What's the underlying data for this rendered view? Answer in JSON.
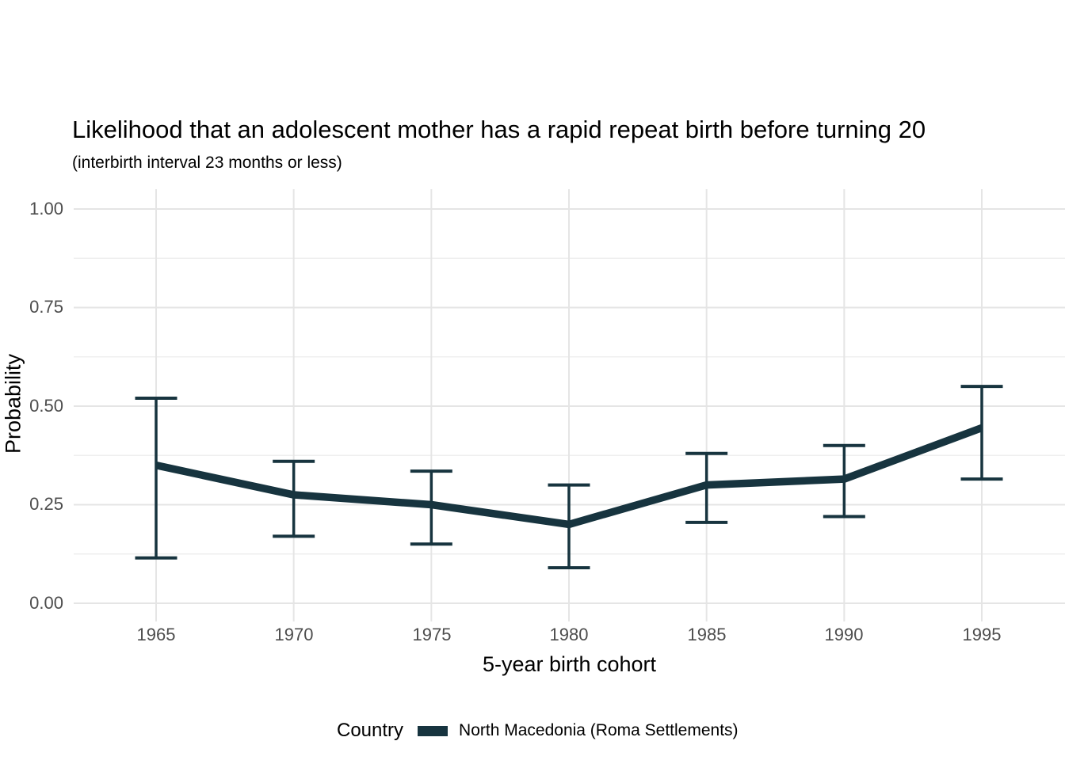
{
  "chart_data": {
    "type": "line",
    "title": "Likelihood that an adolescent mother has a rapid repeat birth before turning 20",
    "subtitle": "(interbirth interval 23 months or less)",
    "xlabel": "5-year birth cohort",
    "ylabel": "Probability",
    "x": [
      1965,
      1970,
      1975,
      1980,
      1985,
      1990,
      1995
    ],
    "x_tick_labels": [
      "1965",
      "1970",
      "1975",
      "1980",
      "1985",
      "1990",
      "1995"
    ],
    "y_ticks": [
      0.0,
      0.25,
      0.5,
      0.75,
      1.0
    ],
    "y_tick_labels": [
      "0.00",
      "0.25",
      "0.50",
      "0.75",
      "1.00"
    ],
    "y_minor_ticks": [
      0.125,
      0.375,
      0.625,
      0.875
    ],
    "ylim": [
      0,
      1
    ],
    "grid": "horizontal major+minor, vertical major only",
    "legend_position": "bottom",
    "legend": {
      "title": "Country"
    },
    "series": [
      {
        "name": "North Macedonia (Roma Settlements)",
        "color": "#17343f",
        "values": [
          0.35,
          0.275,
          0.25,
          0.2,
          0.3,
          0.315,
          0.445
        ],
        "ci_low": [
          0.115,
          0.17,
          0.15,
          0.09,
          0.205,
          0.22,
          0.315
        ],
        "ci_high": [
          0.52,
          0.36,
          0.335,
          0.3,
          0.38,
          0.4,
          0.55
        ]
      }
    ],
    "colors": {
      "background": "#ffffff",
      "grid_major": "#e5e5e5",
      "grid_minor": "#efefef",
      "tick_label": "#4d4d4d",
      "text": "#000000",
      "series": "#17343f"
    }
  }
}
